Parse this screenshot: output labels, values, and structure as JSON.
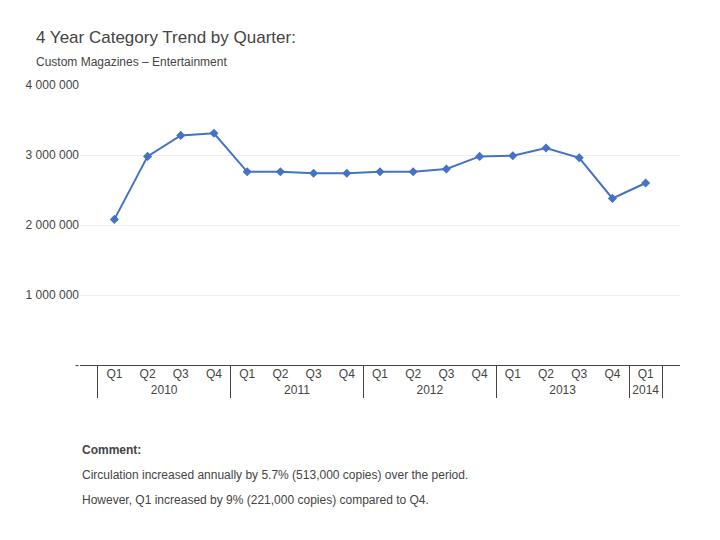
{
  "chart_data": {
    "type": "line",
    "title": "4 Year Category Trend by Quarter:",
    "subtitle": "Custom Magazines – Entertainment",
    "categories": [
      "Q1",
      "Q2",
      "Q3",
      "Q4",
      "Q1",
      "Q2",
      "Q3",
      "Q4",
      "Q1",
      "Q2",
      "Q3",
      "Q4",
      "Q1",
      "Q2",
      "Q3",
      "Q4",
      "Q1"
    ],
    "category_groups": [
      "2010",
      "2010",
      "2010",
      "2010",
      "2011",
      "2011",
      "2011",
      "2011",
      "2012",
      "2012",
      "2012",
      "2012",
      "2013",
      "2013",
      "2013",
      "2013",
      "2014"
    ],
    "values": [
      2080000,
      2980000,
      3280000,
      3310000,
      2760000,
      2760000,
      2740000,
      2740000,
      2760000,
      2760000,
      2800000,
      2980000,
      2990000,
      3100000,
      2960000,
      2380000,
      2600000
    ],
    "color": "#4472C4",
    "marker": "diamond",
    "ylim": [
      0,
      4000000
    ],
    "yticks": [
      {
        "value": 0,
        "label": "-"
      },
      {
        "value": 1000000,
        "label": "1 000 000"
      },
      {
        "value": 2000000,
        "label": "2 000 000"
      },
      {
        "value": 3000000,
        "label": "3 000 000"
      },
      {
        "value": 4000000,
        "label": "4 000 000"
      }
    ],
    "grid": true,
    "annotations": [
      "Comment:",
      "Circulation increased annually by 5.7% (513,000 copies) over the period.",
      "However, Q1 increased by 9% (221,000 copies) compared to Q4."
    ]
  }
}
